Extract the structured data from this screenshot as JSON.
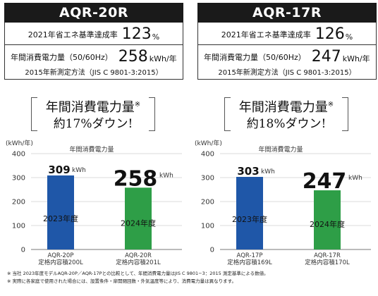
{
  "panels": [
    {
      "model": "AQR-20R",
      "rate_label": "2021年省エネ基準達成率",
      "rate_value": "123",
      "rate_unit": "%",
      "energy_label": "年間消費電力量（50/60Hz）",
      "energy_value": "258",
      "energy_unit": "kWh/年",
      "method": "2015年新測定方法（JIS C 9801-3:2015）",
      "callout_line1": "年間消費電力量",
      "callout_mark": "※",
      "callout_line2": "約17%ダウン!"
    },
    {
      "model": "AQR-17R",
      "rate_label": "2021年省エネ基準達成率",
      "rate_value": "126",
      "rate_unit": "%",
      "energy_label": "年間消費電力量（50/60Hz）",
      "energy_value": "247",
      "energy_unit": "kWh/年",
      "method": "2015年新測定方法（JIS C 9801-3:2015）",
      "callout_line1": "年間消費電力量",
      "callout_mark": "※",
      "callout_line2": "約18%ダウン!"
    }
  ],
  "chart_data": [
    {
      "type": "bar",
      "title": "年間消費電力量",
      "ylabel": "(kWh/年)",
      "ylim": [
        0,
        400
      ],
      "yticks": [
        0,
        100,
        200,
        300,
        400
      ],
      "grid": true,
      "categories": [
        "AQR-20P\n定格内容積200L",
        "AQR-20R\n定格内容積201L"
      ],
      "values": [
        309,
        258
      ],
      "value_labels": [
        "309",
        "258"
      ],
      "value_unit": "kWh",
      "bar_labels": [
        "2023年度",
        "2024年度"
      ],
      "colors": [
        "#1f57a8",
        "#2e9e47"
      ]
    },
    {
      "type": "bar",
      "title": "年間消費電力量",
      "ylabel": "(kWh/年)",
      "ylim": [
        0,
        400
      ],
      "yticks": [
        0,
        100,
        200,
        300,
        400
      ],
      "grid": true,
      "categories": [
        "AQR-17P\n定格内容積169L",
        "AQR-17R\n定格内容積170L"
      ],
      "values": [
        303,
        247
      ],
      "value_labels": [
        "303",
        "247"
      ],
      "value_unit": "kWh",
      "bar_labels": [
        "2023年度",
        "2024年度"
      ],
      "colors": [
        "#1f57a8",
        "#2e9e47"
      ]
    }
  ],
  "notes": [
    "※ 当社 2023年度モデルAQR-20P／AQR-17Pとの比較として、年間消費電力量はJIS C 9801−3：2015 測定基準による数値。",
    "※ 実際に各家庭で使用された場合には、設置条件・扉開閉回数・外気温度等により、消費電力量は異なります。"
  ]
}
